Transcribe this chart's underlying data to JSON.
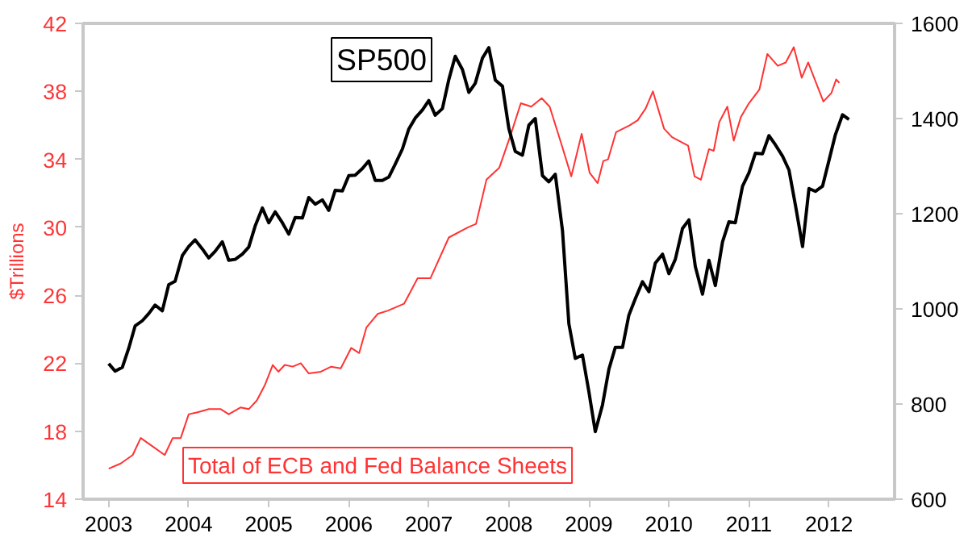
{
  "chart_data": {
    "type": "line",
    "ylabel": "$Trillions",
    "xlim": [
      2002.68,
      2012.82
    ],
    "xticks": [
      2003,
      2004,
      2005,
      2006,
      2007,
      2008,
      2009,
      2010,
      2011,
      2012
    ],
    "ylim": [
      14,
      42
    ],
    "yticks": [
      14,
      18,
      22,
      26,
      30,
      34,
      38,
      42
    ],
    "y2lim": [
      600,
      1600
    ],
    "y2ticks": [
      600,
      800,
      1000,
      1200,
      1400,
      1600
    ],
    "grid": false,
    "series": [
      {
        "name": "Total of ECB and Fed Balance Sheets",
        "color": "#ff3333",
        "x": [
          2003.0,
          2003.15,
          2003.3,
          2003.4,
          2003.55,
          2003.7,
          2003.8,
          2003.9,
          2004.0,
          2004.1,
          2004.25,
          2004.4,
          2004.5,
          2004.65,
          2004.75,
          2004.85,
          2004.95,
          2005.05,
          2005.12,
          2005.2,
          2005.3,
          2005.4,
          2005.5,
          2005.65,
          2005.78,
          2005.9,
          2006.03,
          2006.13,
          2006.22,
          2006.36,
          2006.49,
          2006.69,
          2006.86,
          2007.02,
          2007.25,
          2007.49,
          2007.59,
          2007.72,
          2007.88,
          2008.02,
          2008.15,
          2008.28,
          2008.41,
          2008.51,
          2008.65,
          2008.78,
          2008.91,
          2009.01,
          2009.11,
          2009.18,
          2009.24,
          2009.34,
          2009.51,
          2009.61,
          2009.71,
          2009.8,
          2009.94,
          2010.04,
          2010.24,
          2010.32,
          2010.4,
          2010.5,
          2010.56,
          2010.63,
          2010.73,
          2010.81,
          2010.9,
          2011.0,
          2011.13,
          2011.23,
          2011.36,
          2011.46,
          2011.56,
          2011.66,
          2011.74,
          2011.93,
          2012.03,
          2012.09,
          2012.13
        ],
        "values": [
          15.8,
          16.1,
          16.6,
          17.6,
          17.1,
          16.6,
          17.6,
          17.6,
          19.0,
          19.1,
          19.3,
          19.3,
          19.0,
          19.4,
          19.3,
          19.8,
          20.7,
          21.9,
          21.5,
          21.9,
          21.8,
          22.0,
          21.4,
          21.5,
          21.8,
          21.7,
          22.9,
          22.6,
          24.1,
          24.9,
          25.1,
          25.5,
          27.0,
          27.0,
          29.4,
          30.0,
          30.2,
          32.8,
          33.5,
          35.4,
          37.3,
          37.1,
          37.6,
          37.1,
          35.0,
          33.0,
          35.5,
          33.2,
          32.6,
          33.9,
          34.0,
          35.6,
          36.0,
          36.3,
          37.0,
          38.0,
          35.8,
          35.3,
          34.8,
          33.0,
          32.8,
          34.6,
          34.5,
          36.2,
          37.1,
          35.1,
          36.5,
          37.3,
          38.1,
          40.2,
          39.5,
          39.7,
          40.6,
          38.8,
          39.7,
          37.4,
          37.9,
          38.7,
          38.5
        ]
      },
      {
        "name": "SP500",
        "color": "#000000",
        "axis": "y2",
        "x": [
          2003.0,
          2003.08,
          2003.17,
          2003.25,
          2003.33,
          2003.42,
          2003.5,
          2003.58,
          2003.67,
          2003.75,
          2003.83,
          2003.92,
          2004.0,
          2004.08,
          2004.17,
          2004.25,
          2004.33,
          2004.42,
          2004.5,
          2004.58,
          2004.67,
          2004.75,
          2004.83,
          2004.92,
          2005.0,
          2005.08,
          2005.17,
          2005.25,
          2005.33,
          2005.42,
          2005.5,
          2005.58,
          2005.67,
          2005.75,
          2005.83,
          2005.92,
          2006.0,
          2006.08,
          2006.17,
          2006.25,
          2006.33,
          2006.42,
          2006.5,
          2006.58,
          2006.67,
          2006.75,
          2006.83,
          2006.92,
          2007.0,
          2007.08,
          2007.17,
          2007.25,
          2007.33,
          2007.42,
          2007.5,
          2007.58,
          2007.67,
          2007.75,
          2007.83,
          2007.92,
          2008.0,
          2008.08,
          2008.17,
          2008.25,
          2008.33,
          2008.42,
          2008.5,
          2008.58,
          2008.67,
          2008.75,
          2008.83,
          2008.92,
          2009.0,
          2009.08,
          2009.17,
          2009.25,
          2009.33,
          2009.42,
          2009.5,
          2009.58,
          2009.67,
          2009.75,
          2009.83,
          2009.92,
          2010.0,
          2010.08,
          2010.17,
          2010.25,
          2010.33,
          2010.42,
          2010.5,
          2010.58,
          2010.67,
          2010.75,
          2010.83,
          2010.92,
          2011.0,
          2011.08,
          2011.17,
          2011.25,
          2011.33,
          2011.42,
          2011.5,
          2011.58,
          2011.67,
          2011.75,
          2011.83,
          2011.92,
          2012.0,
          2012.08,
          2012.17,
          2012.25
        ],
        "values": [
          885,
          869,
          877,
          917,
          964,
          975,
          990,
          1008,
          996,
          1051,
          1058,
          1112,
          1131,
          1145,
          1126,
          1107,
          1121,
          1141,
          1102,
          1104,
          1115,
          1130,
          1174,
          1212,
          1181,
          1204,
          1181,
          1157,
          1192,
          1191,
          1234,
          1220,
          1229,
          1207,
          1249,
          1248,
          1280,
          1281,
          1295,
          1311,
          1270,
          1270,
          1277,
          1304,
          1336,
          1378,
          1401,
          1418,
          1438,
          1407,
          1421,
          1482,
          1531,
          1503,
          1455,
          1474,
          1527,
          1549,
          1481,
          1468,
          1379,
          1331,
          1323,
          1386,
          1400,
          1280,
          1267,
          1283,
          1165,
          969,
          896,
          903,
          826,
          742,
          798,
          873,
          919,
          919,
          987,
          1021,
          1057,
          1036,
          1096,
          1115,
          1074,
          1104,
          1169,
          1187,
          1089,
          1031,
          1102,
          1049,
          1141,
          1183,
          1181,
          1258,
          1286,
          1327,
          1326,
          1364,
          1345,
          1321,
          1292,
          1219,
          1131,
          1253,
          1247,
          1258,
          1312,
          1366,
          1408,
          1398
        ]
      }
    ]
  }
}
